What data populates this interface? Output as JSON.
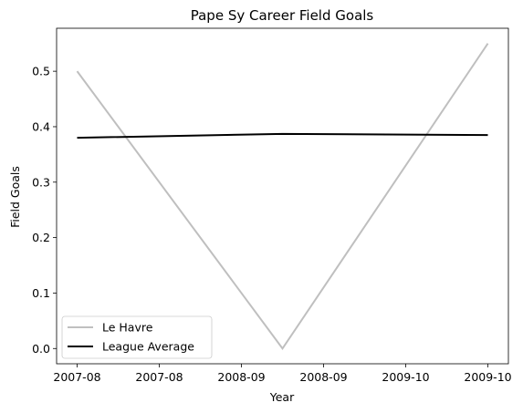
{
  "chart_data": {
    "type": "line",
    "title": "Pape Sy Career Field Goals",
    "xlabel": "Year",
    "ylabel": "Field Goals",
    "x_tick_labels": [
      "2007-08",
      "2007-08",
      "2008-09",
      "2008-09",
      "2009-10",
      "2009-10"
    ],
    "y_ticks": [
      0.0,
      0.1,
      0.2,
      0.3,
      0.4,
      0.5
    ],
    "y_tick_labels": [
      "0.0",
      "0.1",
      "0.2",
      "0.3",
      "0.4",
      "0.5"
    ],
    "ylim": [
      -0.0275,
      0.5775
    ],
    "x": [
      "2007-08",
      "2008-09",
      "2009-10"
    ],
    "series": [
      {
        "name": "Le Havre",
        "values": [
          0.5,
          0.0,
          0.55
        ],
        "color": "#bfbfbf"
      },
      {
        "name": "League Average",
        "values": [
          0.38,
          0.387,
          0.385
        ],
        "color": "#000000"
      }
    ],
    "grid": false,
    "legend_position": "lower-left"
  }
}
